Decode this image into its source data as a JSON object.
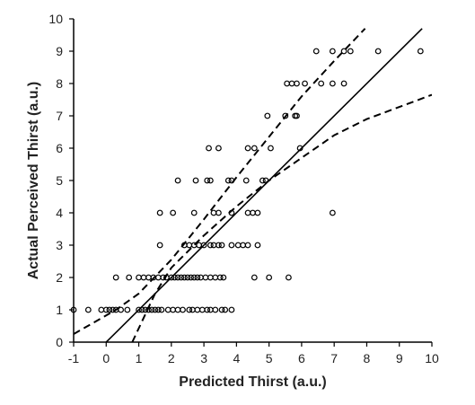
{
  "chart_data": {
    "type": "scatter",
    "xlabel": "Predicted Thirst (a.u.)",
    "ylabel": "Actual Perceived Thirst (a.u.)",
    "xlim": [
      -1,
      10
    ],
    "ylim": [
      0,
      10
    ],
    "x_ticks": [
      "-1",
      "0",
      "1",
      "2",
      "3",
      "4",
      "5",
      "6",
      "7",
      "8",
      "9",
      "10"
    ],
    "y_ticks": [
      "0",
      "1",
      "2",
      "3",
      "4",
      "5",
      "6",
      "7",
      "8",
      "9",
      "10"
    ],
    "grid": false,
    "legend": "none",
    "marker": "open-circle",
    "points": [
      [
        -1.0,
        1
      ],
      [
        -0.55,
        1
      ],
      [
        -0.15,
        1
      ],
      [
        0.0,
        1
      ],
      [
        0.1,
        1
      ],
      [
        0.2,
        1
      ],
      [
        0.3,
        1
      ],
      [
        0.45,
        1
      ],
      [
        0.65,
        1
      ],
      [
        1.0,
        1
      ],
      [
        1.1,
        1
      ],
      [
        1.2,
        1
      ],
      [
        1.3,
        1
      ],
      [
        1.4,
        1
      ],
      [
        1.5,
        1
      ],
      [
        1.6,
        1
      ],
      [
        1.7,
        1
      ],
      [
        1.9,
        1
      ],
      [
        2.05,
        1
      ],
      [
        2.2,
        1
      ],
      [
        2.35,
        1
      ],
      [
        2.55,
        1
      ],
      [
        2.65,
        1
      ],
      [
        2.8,
        1
      ],
      [
        2.95,
        1
      ],
      [
        3.1,
        1
      ],
      [
        3.2,
        1
      ],
      [
        3.35,
        1
      ],
      [
        3.55,
        1
      ],
      [
        3.65,
        1
      ],
      [
        3.85,
        1
      ],
      [
        0.3,
        2
      ],
      [
        0.7,
        2
      ],
      [
        1.0,
        2
      ],
      [
        1.15,
        2
      ],
      [
        1.3,
        2
      ],
      [
        1.45,
        2
      ],
      [
        1.6,
        2
      ],
      [
        1.75,
        2
      ],
      [
        1.85,
        2
      ],
      [
        2.0,
        2
      ],
      [
        2.1,
        2
      ],
      [
        2.2,
        2
      ],
      [
        2.3,
        2
      ],
      [
        2.4,
        2
      ],
      [
        2.5,
        2
      ],
      [
        2.6,
        2
      ],
      [
        2.7,
        2
      ],
      [
        2.8,
        2
      ],
      [
        2.9,
        2
      ],
      [
        3.05,
        2
      ],
      [
        3.2,
        2
      ],
      [
        3.35,
        2
      ],
      [
        3.5,
        2
      ],
      [
        3.6,
        2
      ],
      [
        4.55,
        2
      ],
      [
        5.0,
        2
      ],
      [
        5.6,
        2
      ],
      [
        1.65,
        3
      ],
      [
        2.4,
        3
      ],
      [
        2.55,
        3
      ],
      [
        2.7,
        3
      ],
      [
        2.85,
        3
      ],
      [
        3.0,
        3
      ],
      [
        3.2,
        3
      ],
      [
        3.3,
        3
      ],
      [
        3.45,
        3
      ],
      [
        3.55,
        3
      ],
      [
        3.85,
        3
      ],
      [
        4.05,
        3
      ],
      [
        4.2,
        3
      ],
      [
        4.35,
        3
      ],
      [
        4.65,
        3
      ],
      [
        1.65,
        4
      ],
      [
        2.05,
        4
      ],
      [
        2.7,
        4
      ],
      [
        3.3,
        4
      ],
      [
        3.45,
        4
      ],
      [
        3.85,
        4
      ],
      [
        4.35,
        4
      ],
      [
        4.5,
        4
      ],
      [
        4.65,
        4
      ],
      [
        6.95,
        4
      ],
      [
        2.2,
        5
      ],
      [
        2.75,
        5
      ],
      [
        3.1,
        5
      ],
      [
        3.2,
        5
      ],
      [
        3.75,
        5
      ],
      [
        3.85,
        5
      ],
      [
        4.3,
        5
      ],
      [
        4.8,
        5
      ],
      [
        4.9,
        5
      ],
      [
        3.15,
        6
      ],
      [
        3.45,
        6
      ],
      [
        4.35,
        6
      ],
      [
        4.55,
        6
      ],
      [
        5.05,
        6
      ],
      [
        5.95,
        6
      ],
      [
        4.95,
        7
      ],
      [
        5.5,
        7
      ],
      [
        5.8,
        7
      ],
      [
        5.85,
        7
      ],
      [
        5.55,
        8
      ],
      [
        5.7,
        8
      ],
      [
        5.85,
        8
      ],
      [
        6.1,
        8
      ],
      [
        6.6,
        8
      ],
      [
        6.95,
        8
      ],
      [
        7.3,
        8
      ],
      [
        6.45,
        9
      ],
      [
        6.95,
        9
      ],
      [
        7.3,
        9
      ],
      [
        7.5,
        9
      ],
      [
        8.35,
        9
      ],
      [
        9.65,
        9
      ]
    ],
    "regression": {
      "slope": 1.0,
      "intercept": 0.0,
      "x_range": [
        0.0,
        9.7
      ]
    },
    "confidence_band": {
      "upper": [
        [
          -1.0,
          0.25
        ],
        [
          0.3,
          1.0
        ],
        [
          1.0,
          1.5
        ],
        [
          2.0,
          2.55
        ],
        [
          3.0,
          3.8
        ],
        [
          4.0,
          5.1
        ],
        [
          5.0,
          6.35
        ],
        [
          6.0,
          7.6
        ],
        [
          7.0,
          8.7
        ],
        [
          7.95,
          9.7
        ]
      ],
      "lower": [
        [
          0.8,
          0.0
        ],
        [
          1.5,
          1.5
        ],
        [
          2.0,
          2.3
        ],
        [
          3.0,
          3.3
        ],
        [
          4.0,
          4.2
        ],
        [
          5.0,
          5.0
        ],
        [
          6.0,
          5.7
        ],
        [
          7.0,
          6.4
        ],
        [
          8.0,
          6.9
        ],
        [
          10.0,
          7.65
        ]
      ]
    }
  }
}
